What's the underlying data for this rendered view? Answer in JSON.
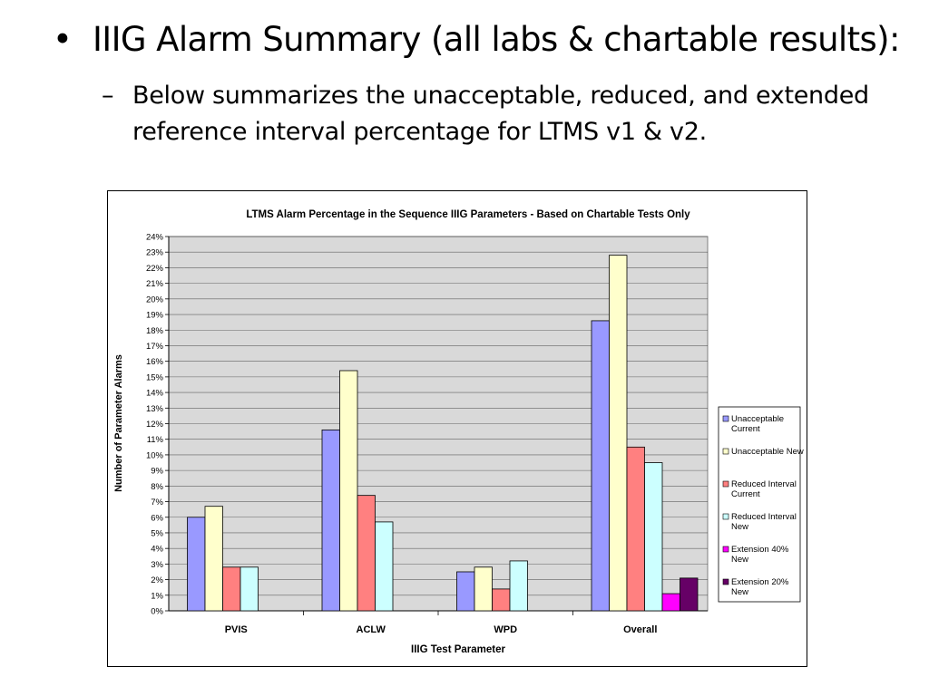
{
  "slide": {
    "bullet": "IIIG Alarm Summary (all labs & chartable results):",
    "bullet_marker": "•",
    "sub_marker": "–",
    "sub_bullet": "Below summarizes the unacceptable, reduced, and extended reference interval percentage for LTMS v1 & v2."
  },
  "chart_data": {
    "type": "bar",
    "title": "LTMS Alarm Percentage in the Sequence IIIG Parameters - Based on Chartable Tests Only",
    "xlabel": "IIIG Test Parameter",
    "ylabel": "Number of Parameter Alarms",
    "categories": [
      "PVIS",
      "ACLW",
      "WPD",
      "Overall"
    ],
    "ylim": [
      0,
      24
    ],
    "y_ticks": [
      "0%",
      "1%",
      "2%",
      "3%",
      "4%",
      "5%",
      "6%",
      "7%",
      "8%",
      "9%",
      "10%",
      "11%",
      "12%",
      "13%",
      "14%",
      "15%",
      "16%",
      "17%",
      "18%",
      "19%",
      "20%",
      "21%",
      "22%",
      "23%",
      "24%"
    ],
    "grid": true,
    "legend_position": "right",
    "plot_background": "#d9d9d9",
    "series": [
      {
        "name": "Unacceptable Current",
        "color": "#9999ff",
        "values": [
          6.0,
          11.6,
          2.5,
          18.6
        ]
      },
      {
        "name": "Unacceptable New",
        "color": "#ffffcc",
        "values": [
          6.7,
          15.4,
          2.8,
          22.8
        ]
      },
      {
        "name": "Reduced Interval Current",
        "color": "#ff8080",
        "values": [
          2.8,
          7.4,
          1.4,
          10.5
        ]
      },
      {
        "name": "Reduced Interval New",
        "color": "#ccffff",
        "values": [
          2.8,
          5.7,
          3.2,
          9.5
        ]
      },
      {
        "name": "Extension 40% New",
        "color": "#ff00ff",
        "values": [
          0,
          0,
          0,
          1.1
        ]
      },
      {
        "name": "Extension 20% New",
        "color": "#660066",
        "values": [
          0,
          0,
          0,
          2.1
        ]
      }
    ]
  }
}
